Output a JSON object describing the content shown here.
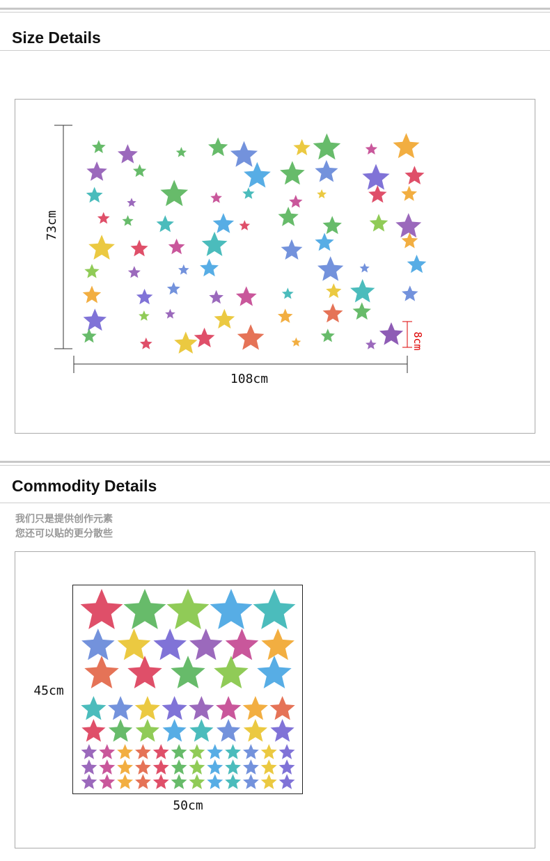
{
  "size_section": {
    "title": "Size Details",
    "height_label": "73cm",
    "width_label": "108cm",
    "star_label": "8cm"
  },
  "commodity_section": {
    "title": "Commodity Details",
    "notes": [
      "我们只是提供创作元素",
      "您还可以贴的更分散些"
    ],
    "height_label": "45cm",
    "width_label": "50cm"
  }
}
